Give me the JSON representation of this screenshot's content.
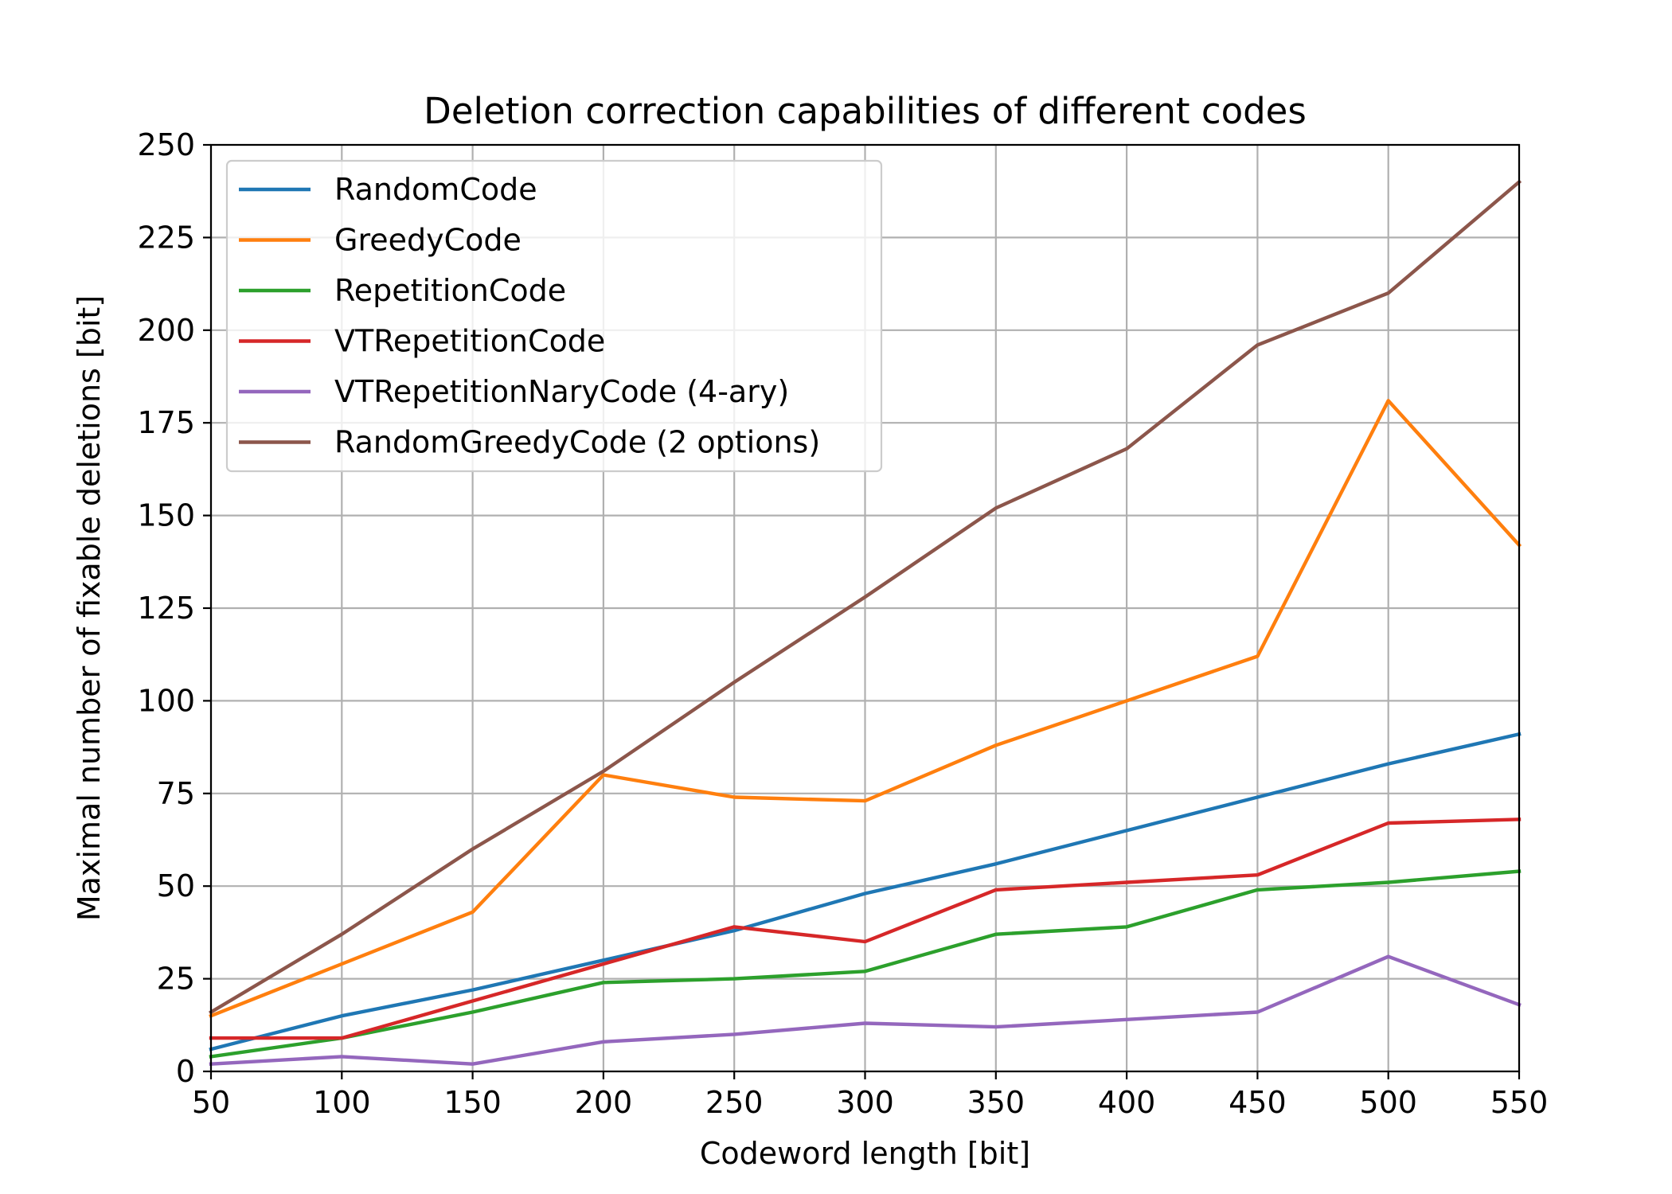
{
  "chart_data": {
    "type": "line",
    "title": "Deletion correction capabilities of different codes",
    "xlabel": "Codeword length [bit]",
    "ylabel": "Maximal number of fixable deletions [bit]",
    "x": [
      50,
      100,
      150,
      200,
      250,
      300,
      350,
      400,
      450,
      500,
      550
    ],
    "xlim": [
      50,
      550
    ],
    "ylim": [
      0,
      250
    ],
    "xticks": [
      50,
      100,
      150,
      200,
      250,
      300,
      350,
      400,
      450,
      500,
      550
    ],
    "yticks": [
      0,
      25,
      50,
      75,
      100,
      125,
      150,
      175,
      200,
      225,
      250
    ],
    "grid": true,
    "legend_position": "top-left",
    "series": [
      {
        "name": "RandomCode",
        "color": "#1f77b4",
        "values": [
          6,
          15,
          22,
          30,
          38,
          48,
          56,
          65,
          74,
          83,
          91
        ]
      },
      {
        "name": "GreedyCode",
        "color": "#ff7f0e",
        "values": [
          15,
          29,
          43,
          80,
          74,
          73,
          88,
          100,
          112,
          181,
          142
        ]
      },
      {
        "name": "RepetitionCode",
        "color": "#2ca02c",
        "values": [
          4,
          9,
          16,
          24,
          25,
          27,
          37,
          39,
          49,
          51,
          54
        ]
      },
      {
        "name": "VTRepetitionCode",
        "color": "#d62728",
        "values": [
          9,
          9,
          19,
          29,
          39,
          35,
          49,
          51,
          53,
          67,
          68
        ]
      },
      {
        "name": "VTRepetitionNaryCode (4-ary)",
        "color": "#9467bd",
        "values": [
          2,
          4,
          2,
          8,
          10,
          13,
          12,
          14,
          16,
          31,
          18
        ]
      },
      {
        "name": "RandomGreedyCode (2 options)",
        "color": "#8c564b",
        "values": [
          16,
          37,
          60,
          81,
          105,
          128,
          152,
          168,
          196,
          210,
          240
        ]
      }
    ]
  }
}
